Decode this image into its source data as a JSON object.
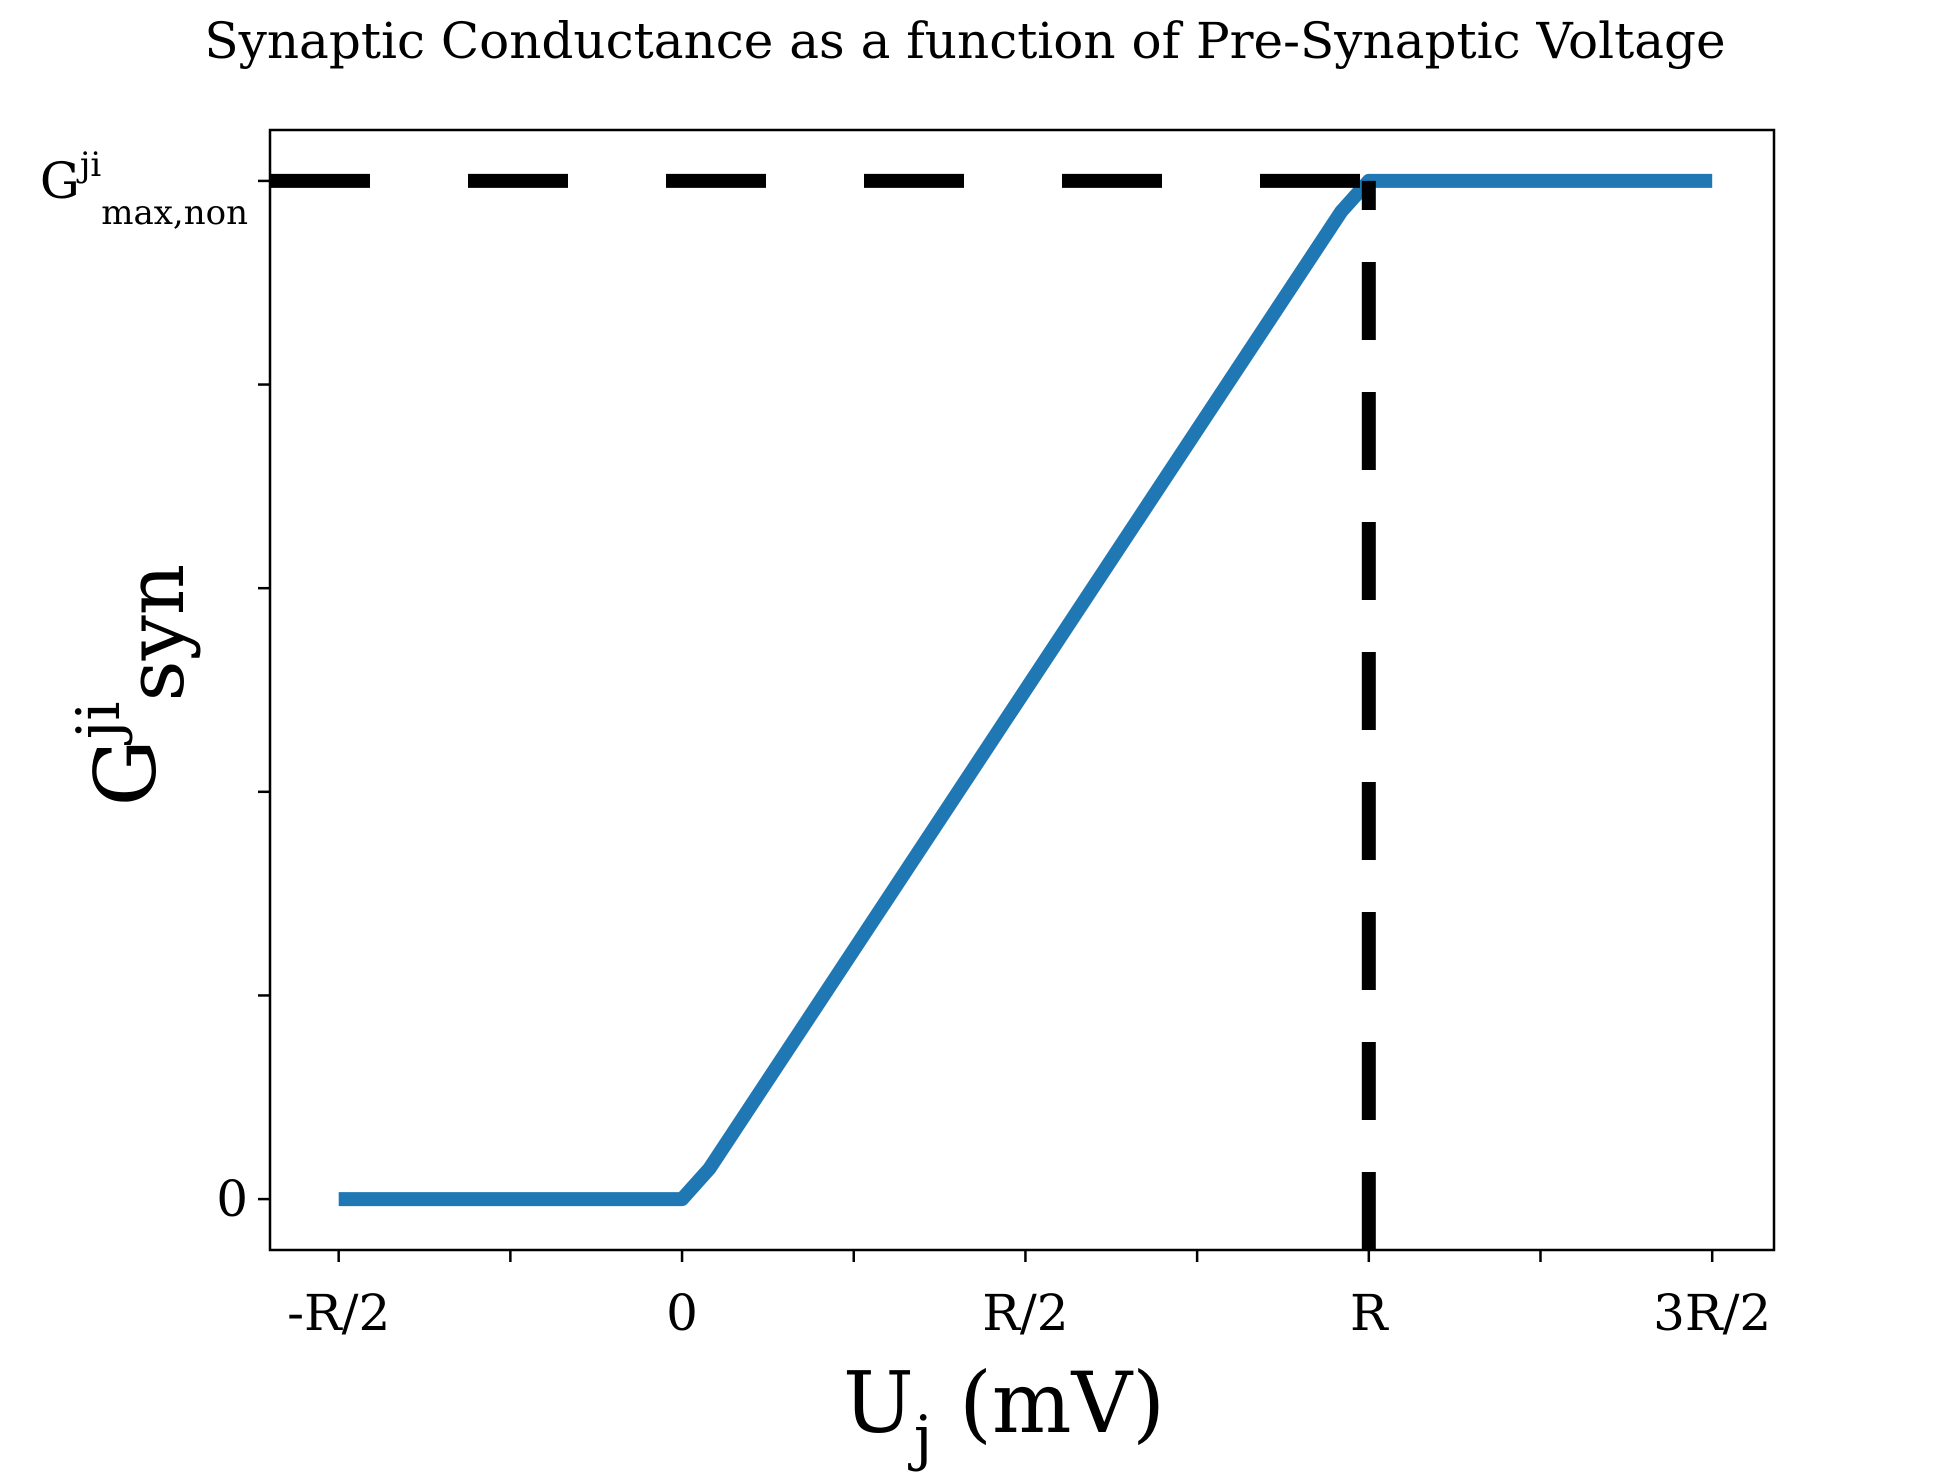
{
  "chart_data": {
    "type": "line",
    "title": "Synaptic Conductance as a function of Pre-Synaptic Voltage",
    "xlabel": {
      "base": "U",
      "sub": "j",
      "suffix": " (mV)"
    },
    "ylabel": {
      "base": "G",
      "sup": "ji",
      "sub": "syn"
    },
    "x_ticks": [
      {
        "value": -0.5,
        "label": "-R/2"
      },
      {
        "value": 0,
        "label": "0"
      },
      {
        "value": 0.5,
        "label": "R/2"
      },
      {
        "value": 1,
        "label": "R"
      },
      {
        "value": 1.5,
        "label": "3R/2"
      }
    ],
    "x_minor_ticks": [
      -0.25,
      0.25,
      0.75,
      1.25
    ],
    "y_ticks": [
      {
        "value": 0,
        "label": "0"
      },
      {
        "value": 1,
        "label": {
          "base": "G",
          "sup": "ji",
          "sub": "max,non"
        }
      }
    ],
    "y_minor_ticks": [
      0.2,
      0.4,
      0.6,
      0.8
    ],
    "xlim": [
      -0.6,
      1.59
    ],
    "ylim": [
      -0.05,
      1.05
    ],
    "series": [
      {
        "x": [
          -0.5,
          0,
          0.04,
          0.96,
          1,
          1.5
        ],
        "y": [
          0,
          0,
          0.03,
          0.97,
          1,
          1
        ],
        "color": "#1f77b4"
      }
    ],
    "reference_lines": [
      {
        "orientation": "horizontal",
        "value": 1,
        "style": "dashed",
        "color": "#000000"
      },
      {
        "orientation": "vertical",
        "value": 1,
        "style": "dashed",
        "color": "#000000"
      }
    ],
    "grid": false
  }
}
